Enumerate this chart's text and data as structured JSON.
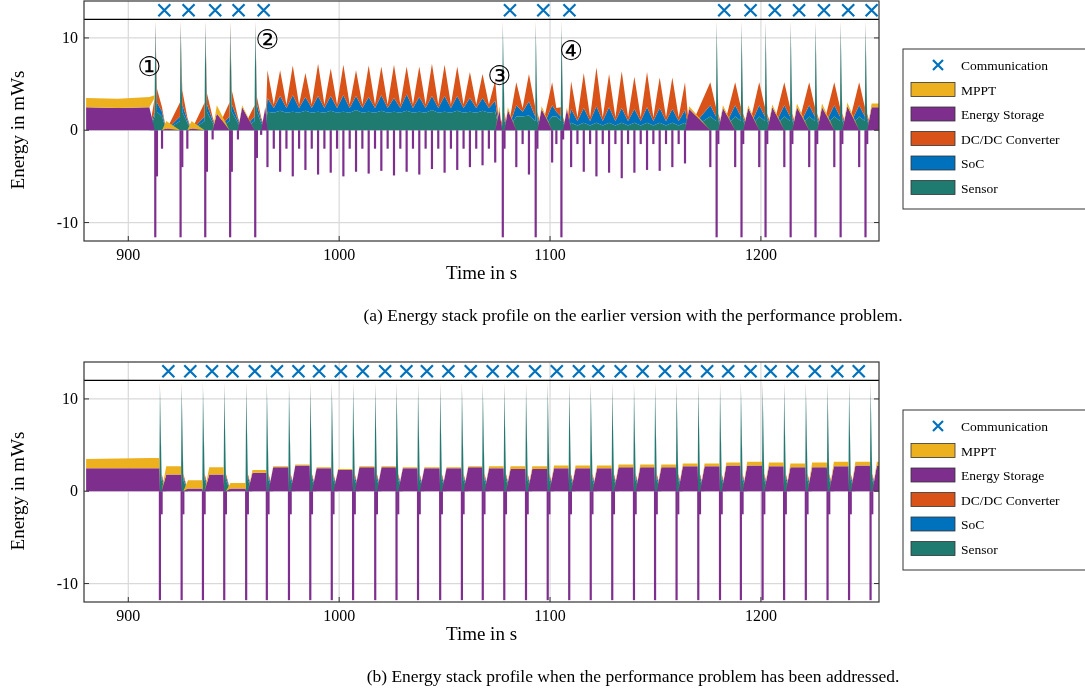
{
  "chart_data": [
    {
      "type": "area",
      "stacked": true,
      "xlabel": "Time in s",
      "ylabel": "Energy in mWs",
      "xlim": [
        879,
        1256
      ],
      "ylim": [
        -12,
        14
      ],
      "xticks": [
        900,
        1000,
        1100,
        1200
      ],
      "yticks": [
        -10,
        0,
        10
      ],
      "grid": true,
      "legend": "right",
      "ref_lines": [
        {
          "axis": "y",
          "value": 12,
          "color": "#000000"
        }
      ],
      "annotations": [
        {
          "text": "①",
          "x": 910,
          "y": 3.6
        },
        {
          "text": "②",
          "x": 966,
          "y": 6.5
        },
        {
          "text": "③",
          "x": 1076,
          "y": 2.6
        },
        {
          "text": "④",
          "x": 1110,
          "y": 5.3
        },
        "(a) Energy stack profile on the earlier version with the performance problem."
      ],
      "x": [
        880,
        895,
        910,
        912.5,
        912.8,
        913.6,
        916,
        918,
        924.5,
        924.8,
        925.6,
        928,
        930,
        936.2,
        936.5,
        937.3,
        940,
        942,
        948,
        948.3,
        949.1,
        952,
        954,
        959.9,
        960.2,
        961,
        963,
        965,
        966,
        969,
        972,
        975,
        978,
        981,
        984,
        987,
        990,
        993,
        996,
        999,
        1002,
        1005,
        1008,
        1011,
        1014,
        1017,
        1020,
        1023,
        1026,
        1029,
        1032,
        1035,
        1038,
        1041,
        1044,
        1047,
        1050,
        1053,
        1056,
        1059,
        1062,
        1065,
        1068,
        1071,
        1074,
        1076,
        1077.3,
        1077.6,
        1078.4,
        1080,
        1084,
        1087,
        1090,
        1093,
        1093.2,
        1094,
        1096,
        1101,
        1103,
        1105.1,
        1105.4,
        1106.2,
        1108,
        1110,
        1113,
        1116,
        1119,
        1122,
        1125,
        1128,
        1131,
        1134,
        1137,
        1140,
        1143,
        1146,
        1149,
        1152,
        1155,
        1158,
        1161,
        1164,
        1166,
        1176,
        1178.7,
        1179,
        1179.8,
        1182,
        1187.8,
        1190.5,
        1190.8,
        1191.6,
        1194,
        1199.2,
        1201.9,
        1202.2,
        1203,
        1205.4,
        1211.1,
        1213.8,
        1214.1,
        1214.9,
        1217.1,
        1222.9,
        1225.6,
        1225.9,
        1226.7,
        1229,
        1234.8,
        1237.5,
        1237.8,
        1238.6,
        1241,
        1246.6,
        1249.3,
        1249.6,
        1250.4,
        1252.5,
        1256
      ],
      "series": [
        {
          "name": "Communication",
          "type": "scatter",
          "marker": "cross",
          "color": "#0072bd",
          "x": [
            917.1,
            928.6,
            941.2,
            952.3,
            964.2,
            1081,
            1096.8,
            1109.2,
            1182.6,
            1195.1,
            1206.6,
            1218.1,
            1229.9,
            1241.4,
            1252.5
          ],
          "values": [
            13,
            13,
            13,
            13,
            13,
            13,
            13,
            13,
            13,
            13,
            13,
            13,
            13,
            13,
            13
          ]
        },
        {
          "name": "Sensor",
          "color": "#1f7a70",
          "values": [
            0,
            0,
            0,
            1.5,
            11,
            2,
            1.5,
            0,
            1,
            11,
            2,
            0.8,
            0,
            1,
            11,
            2,
            0.8,
            0,
            1,
            11,
            2,
            0.8,
            0,
            1,
            11,
            2,
            0.8,
            0,
            2,
            1.9,
            2.1,
            1.9,
            2,
            1.9,
            2.1,
            1.9,
            2,
            1.9,
            2.1,
            1.9,
            2,
            1.9,
            2.2,
            1.9,
            2,
            1.9,
            2.1,
            1.9,
            2,
            1.9,
            2.1,
            1.9,
            2,
            1.9,
            2.2,
            1.9,
            2,
            1.9,
            2.1,
            1.9,
            2,
            1.9,
            2.1,
            1.9,
            2,
            0,
            0.5,
            11,
            1,
            0,
            1.5,
            1.5,
            1.6,
            1,
            11,
            1,
            0,
            1.5,
            1.5,
            1,
            11,
            0.8,
            0,
            0.8,
            0.5,
            0.8,
            0.5,
            0.8,
            0.5,
            0.8,
            0.5,
            0.8,
            0.5,
            0.8,
            0.5,
            0.8,
            0.5,
            0.8,
            0.5,
            0.8,
            0.5,
            0.8,
            0,
            1.5,
            1,
            11,
            1,
            0,
            1.5,
            1,
            11,
            1,
            0,
            1.5,
            1,
            11,
            1,
            0,
            1.5,
            1,
            11,
            1,
            0,
            1.5,
            1,
            11,
            1,
            0,
            1.5,
            1,
            11,
            1,
            0,
            1.5,
            1,
            11,
            1,
            0,
            0
          ]
        },
        {
          "name": "SoC",
          "color": "#0072bd",
          "values": [
            0,
            0,
            0,
            0.5,
            0.4,
            1,
            0.5,
            0,
            0.5,
            0.4,
            0.8,
            0.3,
            0,
            0.5,
            0.4,
            0.8,
            0.3,
            0,
            0.5,
            0.4,
            0.8,
            0.3,
            0,
            0.5,
            0.4,
            0.8,
            0.3,
            0,
            1.5,
            0.5,
            1.6,
            0.5,
            1.8,
            0.5,
            1.5,
            0.5,
            1.7,
            0.5,
            1.6,
            0.5,
            1.8,
            0.5,
            1.5,
            0.5,
            1.6,
            0.5,
            1.7,
            0.5,
            1.5,
            0.5,
            1.8,
            0.5,
            1.6,
            0.5,
            1.5,
            0.5,
            1.7,
            0.5,
            1.6,
            0.5,
            1.5,
            0.5,
            1.4,
            0.5,
            1.2,
            0,
            0.3,
            0.4,
            0.4,
            0,
            1.2,
            0.5,
            1.5,
            0.5,
            0.4,
            0.5,
            0,
            1.2,
            0.5,
            0.5,
            0.4,
            0.3,
            0,
            1.5,
            0.5,
            1.6,
            0.5,
            1.8,
            0.5,
            1.7,
            0.5,
            1.6,
            0.5,
            1.5,
            0.5,
            1.7,
            0.5,
            1.6,
            0.5,
            1.5,
            0.5,
            1.4,
            0,
            1.2,
            0.5,
            0.4,
            0.4,
            0,
            1.2,
            0.5,
            0.4,
            0.4,
            0,
            1.2,
            0.5,
            0.4,
            0.4,
            0,
            1.2,
            0.5,
            0.4,
            0.4,
            0,
            1.2,
            0.5,
            0.4,
            0.4,
            0,
            1.2,
            0.5,
            0.4,
            0.4,
            0,
            1.2,
            0.5,
            0.4,
            0.4,
            0,
            0
          ]
        },
        {
          "name": "DC/DC Converter",
          "color": "#d95319",
          "values": [
            0,
            0,
            0,
            1.5,
            0.4,
            1.5,
            0.5,
            0,
            1.5,
            0.4,
            1.5,
            0.3,
            0,
            1.5,
            0.4,
            1.2,
            0.3,
            0,
            1.5,
            0.4,
            1.5,
            0.3,
            0,
            1.2,
            0.4,
            0.8,
            0.3,
            0,
            3,
            0.4,
            2.8,
            0.4,
            3.2,
            0.4,
            2.6,
            0.4,
            3.5,
            0.4,
            3,
            0.4,
            3.3,
            0.4,
            2.8,
            0.4,
            3.4,
            0.4,
            3.1,
            0.4,
            3.6,
            0.4,
            3,
            0.4,
            3.3,
            0.4,
            3.5,
            0.4,
            3.4,
            0.4,
            3.2,
            0.4,
            2.8,
            0.4,
            2.6,
            0.4,
            2.2,
            0,
            0.5,
            0.4,
            0.5,
            0,
            2.5,
            0.4,
            3,
            1,
            0.4,
            0.5,
            0,
            2.5,
            0.4,
            1,
            0.4,
            0.3,
            0,
            3,
            0.4,
            3.8,
            0.4,
            4.2,
            0.4,
            3.6,
            0.4,
            4,
            0.4,
            3.5,
            0.4,
            3.8,
            0.4,
            3.3,
            0.4,
            3.4,
            0.4,
            3,
            0,
            2.5,
            1,
            0.4,
            0.4,
            0,
            2.5,
            1,
            0.4,
            0.4,
            0,
            2.5,
            1,
            0.4,
            0.4,
            0,
            2.5,
            1,
            0.4,
            0.4,
            0,
            2.5,
            1,
            0.4,
            0.4,
            0,
            2.5,
            1,
            0.4,
            0.4,
            0,
            2.5,
            1,
            0.4,
            0.4,
            0,
            0
          ]
        },
        {
          "name": "Energy Storage",
          "color": "#7e2f8e",
          "values": [
            2.5,
            2.4,
            2.5,
            null,
            null,
            null,
            null,
            0.2,
            null,
            null,
            null,
            null,
            0.2,
            null,
            null,
            null,
            null,
            1.8,
            null,
            null,
            null,
            null,
            2.5,
            null,
            null,
            null,
            null,
            2.5,
            null,
            null,
            null,
            null,
            null,
            null,
            null,
            null,
            null,
            null,
            null,
            null,
            null,
            null,
            null,
            null,
            null,
            null,
            null,
            null,
            null,
            null,
            null,
            null,
            null,
            null,
            null,
            null,
            null,
            null,
            null,
            null,
            null,
            null,
            null,
            null,
            null,
            2.2,
            null,
            null,
            null,
            2.2,
            null,
            null,
            null,
            null,
            null,
            null,
            2.3,
            null,
            null,
            null,
            null,
            null,
            2.3,
            null,
            null,
            null,
            null,
            null,
            null,
            null,
            null,
            null,
            null,
            null,
            null,
            null,
            null,
            null,
            null,
            null,
            null,
            null,
            2.3,
            null,
            null,
            null,
            null,
            2.4,
            null,
            null,
            null,
            null,
            2.4,
            null,
            null,
            null,
            null,
            2.5,
            null,
            null,
            null,
            null,
            2.5,
            null,
            null,
            null,
            null,
            2.5,
            null,
            null,
            null,
            null,
            2.6,
            null,
            null,
            null,
            null,
            2.5,
            2.5
          ]
        },
        {
          "name": "MPPT",
          "color": "#edb120",
          "values": [
            1,
            1,
            1.1,
            0.3,
            null,
            null,
            null,
            0.8,
            null,
            null,
            null,
            null,
            0.8,
            null,
            null,
            null,
            null,
            0.9,
            null,
            null,
            null,
            null,
            0.2,
            null,
            null,
            null,
            null,
            0.1,
            null,
            null,
            null,
            null,
            null,
            null,
            null,
            null,
            null,
            null,
            null,
            null,
            null,
            null,
            null,
            null,
            null,
            null,
            null,
            null,
            null,
            null,
            null,
            null,
            null,
            null,
            null,
            null,
            null,
            null,
            null,
            null,
            null,
            null,
            null,
            null,
            null,
            0.4,
            null,
            null,
            null,
            0.3,
            null,
            null,
            null,
            null,
            null,
            null,
            0.3,
            null,
            null,
            null,
            null,
            null,
            0.2,
            null,
            null,
            null,
            null,
            null,
            null,
            null,
            null,
            null,
            null,
            null,
            null,
            null,
            null,
            null,
            null,
            null,
            null,
            null,
            0.3,
            null,
            null,
            null,
            null,
            0.3,
            null,
            null,
            null,
            null,
            0.3,
            null,
            null,
            null,
            null,
            0.3,
            null,
            null,
            null,
            null,
            0.4,
            null,
            null,
            null,
            null,
            0.4,
            null,
            null,
            null,
            null,
            0.4,
            null,
            null,
            null,
            null,
            0.4,
            0.4
          ]
        },
        {
          "type": "bar",
          "color": "#7e2f8e",
          "values": [
            null,
            null,
            null,
            null,
            -11.6,
            -5,
            -2,
            null,
            null,
            -11.6,
            -4,
            -2,
            null,
            null,
            -11.6,
            -4.5,
            -1,
            null,
            null,
            -11.6,
            -4.5,
            -1,
            null,
            null,
            -11.6,
            -3,
            -0.5,
            null,
            -4,
            -2,
            -4.5,
            -2,
            -5,
            -2,
            -4.3,
            -2,
            -4.8,
            -2,
            -4.6,
            -2,
            -5,
            -2,
            -4.5,
            -2,
            -4.7,
            -2,
            -4.4,
            -2,
            -4.9,
            -2,
            -4.5,
            -2,
            -4.8,
            -2,
            -4.2,
            -2,
            -4.6,
            -2,
            -4.3,
            -2,
            -4,
            -2,
            -3.8,
            -2,
            -3.5,
            null,
            null,
            -11.6,
            -2,
            null,
            -4,
            -1.5,
            -4.8,
            null,
            -11.6,
            -2,
            null,
            -3.5,
            -1.5,
            null,
            -11.6,
            -1,
            null,
            -4,
            -1.5,
            -4.5,
            -1.5,
            -5,
            -1.5,
            -4.6,
            -1.5,
            -5.2,
            -1.5,
            -4.6,
            -1.5,
            -4.3,
            -1.5,
            -4.4,
            -1.5,
            -4,
            -1.5,
            -3.6,
            null,
            -4,
            null,
            -11.6,
            -1.5,
            null,
            -4,
            null,
            -11.6,
            -1.5,
            null,
            -4,
            null,
            -11.6,
            -1.5,
            null,
            -4,
            null,
            -11.6,
            -1.5,
            null,
            -4,
            null,
            -11.6,
            -1.5,
            null,
            -4,
            null,
            -11.6,
            -1.5,
            null,
            -4,
            null,
            -11.6,
            -1.5,
            null,
            null
          ]
        }
      ]
    },
    {
      "type": "area",
      "stacked": true,
      "xlabel": "Time in s",
      "ylabel": "Energy in mWs",
      "xlim": [
        879,
        1256
      ],
      "ylim": [
        -12,
        14
      ],
      "xticks": [
        900,
        1000,
        1100,
        1200
      ],
      "yticks": [
        -10,
        0,
        10
      ],
      "grid": true,
      "legend": "right",
      "ref_lines": [
        {
          "axis": "y",
          "value": 12,
          "color": "#000000"
        }
      ],
      "annotations": [
        "(b) Energy stack profile when the performance problem has been addressed."
      ],
      "x": [
        880,
        910,
        914.7,
        915,
        915.8,
        918,
        925,
        925.3,
        926.1,
        928.3,
        935.1,
        935.4,
        936.2,
        938.4,
        945.2,
        945.5,
        946.3,
        948.5,
        955.6,
        955.9,
        956.7,
        958.9,
        965.4,
        965.7,
        966.5,
        968.7,
        975.9,
        976.2,
        977,
        979.2,
        986,
        986.3,
        987.1,
        989.3,
        996.2,
        996.5,
        997.3,
        999.5,
        1006.3,
        1006.6,
        1007.4,
        1009.6,
        1016.8,
        1017.1,
        1017.9,
        1020.1,
        1026.9,
        1027.2,
        1028,
        1030.2,
        1037.1,
        1037.4,
        1038.2,
        1040.4,
        1047.6,
        1047.9,
        1048.7,
        1050.9,
        1057.9,
        1058.2,
        1059,
        1061.2,
        1067.8,
        1068.1,
        1068.9,
        1071.1,
        1078,
        1078.3,
        1079.1,
        1081.3,
        1088.3,
        1088.6,
        1089.4,
        1091.6,
        1098.6,
        1098.9,
        1099.7,
        1101.9,
        1108.8,
        1109.1,
        1109.9,
        1112.1,
        1119,
        1119.3,
        1120.1,
        1122.3,
        1129.2,
        1129.5,
        1130.3,
        1132.5,
        1139.5,
        1139.8,
        1140.6,
        1142.8,
        1149.5,
        1149.8,
        1150.6,
        1152.8,
        1159.7,
        1160,
        1160.8,
        1163,
        1170,
        1170.3,
        1171.1,
        1173.3,
        1180.3,
        1180.6,
        1181.4,
        1183.6,
        1190.2,
        1190.5,
        1191.3,
        1193.5,
        1200.5,
        1200.8,
        1201.6,
        1203.8,
        1210.7,
        1211,
        1211.8,
        1214,
        1221,
        1221.3,
        1222.1,
        1224.3,
        1231.3,
        1231.6,
        1232.4,
        1234.6,
        1241.5,
        1241.8,
        1242.6,
        1244.8,
        1251.7,
        1252,
        1252.8,
        1255,
        1256
      ],
      "series": [
        {
          "name": "Communication",
          "type": "scatter",
          "marker": "cross",
          "color": "#0072bd",
          "x": [
            919,
            929.4,
            939.7,
            949.4,
            960,
            970.5,
            980.7,
            990.5,
            1000.8,
            1011.2,
            1021.8,
            1031.9,
            1041.6,
            1051.8,
            1062.4,
            1072.8,
            1082.3,
            1092.9,
            1103.2,
            1113.7,
            1122.9,
            1133.5,
            1143.9,
            1154.5,
            1164,
            1174.5,
            1184.5,
            1195.1,
            1204.6,
            1215,
            1225.6,
            1236.2,
            1246.4
          ],
          "values": [
            13,
            13,
            13,
            13,
            13,
            13,
            13,
            13,
            13,
            13,
            13,
            13,
            13,
            13,
            13,
            13,
            13,
            13,
            13,
            13,
            13,
            13,
            13,
            13,
            13,
            13,
            13,
            13,
            13,
            13,
            13,
            13,
            13
          ]
        },
        {
          "name": "Sensor",
          "color": "#1f7a70",
          "values": [
            0,
            0,
            0,
            11,
            1.2,
            0,
            0,
            11,
            1.2,
            0,
            0,
            11,
            1.2,
            0,
            0,
            11,
            1.2,
            0,
            0,
            11,
            1.2,
            0,
            0,
            11,
            1.2,
            0,
            0,
            11,
            1.2,
            0,
            0,
            11,
            1.2,
            0,
            0,
            11,
            1.2,
            0,
            0,
            11,
            1.2,
            0,
            0,
            11,
            1.2,
            0,
            0,
            11,
            1.2,
            0,
            0,
            11,
            1.2,
            0,
            0,
            11,
            1.2,
            0,
            0,
            11,
            1.2,
            0,
            0,
            11,
            1.2,
            0,
            0,
            11,
            1.2,
            0,
            0,
            11,
            1.2,
            0,
            0,
            11,
            1.2,
            0,
            0,
            11,
            1.2,
            0,
            0,
            11,
            1.2,
            0,
            0,
            11,
            1.2,
            0,
            0,
            11,
            1.2,
            0,
            0,
            11,
            1.2,
            0,
            0,
            11,
            1.2,
            0,
            0,
            11,
            1.2,
            0,
            0,
            11,
            1.2,
            0,
            0,
            11,
            1.2,
            0,
            0,
            11,
            1.2,
            0,
            0,
            11,
            1.2,
            0,
            0,
            11,
            1.2,
            0,
            0,
            11,
            1.2,
            0,
            0,
            11,
            1.2,
            0,
            0,
            11,
            1.2,
            0,
            0
          ]
        },
        {
          "name": "SoC",
          "color": "#0072bd",
          "values": [
            0,
            0,
            0,
            0.4,
            0.4,
            0,
            0,
            0.4,
            0.4,
            0,
            0,
            0.4,
            0.4,
            0,
            0,
            0.4,
            0.4,
            0,
            0,
            0.4,
            0.4,
            0,
            0,
            0.4,
            0.4,
            0,
            0,
            0.4,
            0.4,
            0,
            0,
            0.4,
            0.4,
            0,
            0,
            0.4,
            0.4,
            0,
            0,
            0.4,
            0.4,
            0,
            0,
            0.4,
            0.4,
            0,
            0,
            0.4,
            0.4,
            0,
            0,
            0.4,
            0.4,
            0,
            0,
            0.4,
            0.4,
            0,
            0,
            0.4,
            0.4,
            0,
            0,
            0.4,
            0.4,
            0,
            0,
            0.4,
            0.4,
            0,
            0,
            0.4,
            0.4,
            0,
            0,
            0.4,
            0.4,
            0,
            0,
            0.4,
            0.4,
            0,
            0,
            0.4,
            0.4,
            0,
            0,
            0.4,
            0.4,
            0,
            0,
            0.4,
            0.4,
            0,
            0,
            0.4,
            0.4,
            0,
            0,
            0.4,
            0.4,
            0,
            0,
            0.4,
            0.4,
            0,
            0,
            0.4,
            0.4,
            0,
            0,
            0.4,
            0.4,
            0,
            0,
            0.4,
            0.4,
            0,
            0,
            0.4,
            0.4,
            0,
            0,
            0.4,
            0.4,
            0,
            0,
            0.4,
            0.4,
            0,
            0,
            0.4,
            0.4,
            0,
            0,
            0.4,
            0.4,
            0,
            0
          ]
        },
        {
          "name": "DC/DC Converter",
          "color": "#d95319",
          "values": [
            0,
            0,
            0,
            0.4,
            0.3,
            0,
            0,
            0.4,
            0.3,
            0,
            0,
            0.4,
            0.3,
            0,
            0,
            0.4,
            0.3,
            0,
            0,
            0.4,
            0.3,
            0,
            0,
            0.4,
            0.3,
            0,
            0,
            0.4,
            0.3,
            0,
            0,
            0.4,
            0.3,
            0,
            0,
            0.4,
            0.3,
            0,
            0,
            0.4,
            0.3,
            0,
            0,
            0.4,
            0.3,
            0,
            0,
            0.4,
            0.3,
            0,
            0,
            0.4,
            0.3,
            0,
            0,
            0.4,
            0.3,
            0,
            0,
            0.4,
            0.3,
            0,
            0,
            0.4,
            0.3,
            0,
            0,
            0.4,
            0.3,
            0,
            0,
            0.4,
            0.3,
            0,
            0,
            0.4,
            0.3,
            0,
            0,
            0.4,
            0.3,
            0,
            0,
            0.4,
            0.3,
            0,
            0,
            0.4,
            0.3,
            0,
            0,
            0.4,
            0.3,
            0,
            0,
            0.4,
            0.3,
            0,
            0,
            0.4,
            0.3,
            0,
            0,
            0.4,
            0.3,
            0,
            0,
            0.4,
            0.3,
            0,
            0,
            0.4,
            0.3,
            0,
            0,
            0.4,
            0.3,
            0,
            0,
            0.4,
            0.3,
            0,
            0,
            0.4,
            0.3,
            0,
            0,
            0.4,
            0.3,
            0,
            0,
            0.4,
            0.3,
            0,
            0,
            0.4,
            0.3,
            0,
            0
          ]
        },
        {
          "name": "Energy Storage",
          "color": "#7e2f8e",
          "values": [
            2.5,
            2.5,
            2.5,
            null,
            null,
            1.8,
            1.8,
            null,
            null,
            0.3,
            0.3,
            null,
            null,
            1.8,
            1.8,
            null,
            null,
            0.3,
            0.3,
            null,
            null,
            2,
            2,
            null,
            null,
            2.6,
            2.6,
            null,
            null,
            2.8,
            2.8,
            null,
            null,
            2.5,
            2.5,
            null,
            null,
            2.3,
            2.3,
            null,
            null,
            2.6,
            2.6,
            null,
            null,
            2.6,
            2.6,
            null,
            null,
            2.5,
            2.5,
            null,
            null,
            2.5,
            2.5,
            null,
            null,
            2.5,
            2.5,
            null,
            null,
            2.6,
            2.6,
            null,
            null,
            2.5,
            2.5,
            null,
            null,
            2.4,
            2.4,
            null,
            null,
            2.4,
            2.4,
            null,
            null,
            2.5,
            2.5,
            null,
            null,
            2.5,
            2.5,
            null,
            null,
            2.5,
            2.5,
            null,
            null,
            2.6,
            2.6,
            null,
            null,
            2.6,
            2.6,
            null,
            null,
            2.6,
            2.6,
            null,
            null,
            2.7,
            2.7,
            null,
            null,
            2.7,
            2.7,
            null,
            null,
            2.8,
            2.8,
            null,
            null,
            2.8,
            2.8,
            null,
            null,
            2.7,
            2.7,
            null,
            null,
            2.6,
            2.6,
            null,
            null,
            2.6,
            2.6,
            null,
            null,
            2.7,
            2.7,
            null,
            null,
            2.8,
            2.8,
            null,
            null,
            2.8,
            2.8
          ]
        },
        {
          "name": "MPPT",
          "color": "#edb120",
          "values": [
            1,
            1.1,
            1.1,
            null,
            null,
            0.9,
            0.9,
            null,
            null,
            0.9,
            0.9,
            null,
            null,
            0.8,
            0.8,
            null,
            null,
            0.6,
            0.6,
            null,
            null,
            0.3,
            0.3,
            null,
            null,
            0.1,
            0.1,
            null,
            null,
            0.1,
            0.1,
            null,
            null,
            0.1,
            0.1,
            null,
            null,
            0.1,
            0.1,
            null,
            null,
            0.1,
            0.1,
            null,
            null,
            0.1,
            0.1,
            null,
            null,
            0.1,
            0.1,
            null,
            null,
            0.1,
            0.1,
            null,
            null,
            0.1,
            0.1,
            null,
            null,
            0.1,
            0.1,
            null,
            null,
            0.2,
            0.2,
            null,
            null,
            0.3,
            0.3,
            null,
            null,
            0.3,
            0.3,
            null,
            null,
            0.3,
            0.3,
            null,
            null,
            0.3,
            0.3,
            null,
            null,
            0.3,
            0.3,
            null,
            null,
            0.3,
            0.3,
            null,
            null,
            0.3,
            0.3,
            null,
            null,
            0.3,
            0.3,
            null,
            null,
            0.3,
            0.3,
            null,
            null,
            0.3,
            0.3,
            null,
            null,
            0.3,
            0.3,
            null,
            null,
            0.4,
            0.4,
            null,
            null,
            0.4,
            0.4,
            null,
            null,
            0.4,
            0.4,
            null,
            null,
            0.5,
            0.5,
            null,
            null,
            0.5,
            0.5,
            null,
            null,
            0.4,
            0.4,
            null,
            null,
            0.4,
            0.4
          ]
        },
        {
          "type": "bar",
          "color": "#7e2f8e",
          "values": [
            null,
            null,
            null,
            -11.8,
            -2.5,
            null,
            null,
            -11.8,
            -2.5,
            null,
            null,
            -11.8,
            -2.5,
            null,
            null,
            -11.8,
            -2.5,
            null,
            null,
            -11.8,
            -2.5,
            null,
            null,
            -11.8,
            -2.5,
            null,
            null,
            -11.8,
            -2.5,
            null,
            null,
            -11.8,
            -2.5,
            null,
            null,
            -11.8,
            -2.5,
            null,
            null,
            -11.8,
            -2.5,
            null,
            null,
            -11.8,
            -2.5,
            null,
            null,
            -11.8,
            -2.5,
            null,
            null,
            -11.8,
            -2.5,
            null,
            null,
            -11.8,
            -2.5,
            null,
            null,
            -11.8,
            -2.5,
            null,
            null,
            -11.8,
            -2.5,
            null,
            null,
            -11.8,
            -2.5,
            null,
            null,
            -11.8,
            -2.5,
            null,
            null,
            -11.8,
            -2.5,
            null,
            null,
            -11.8,
            -2.5,
            null,
            null,
            -11.8,
            -2.5,
            null,
            null,
            -11.8,
            -2.5,
            null,
            null,
            -11.8,
            -2.5,
            null,
            null,
            -11.8,
            -2.5,
            null,
            null,
            -11.8,
            -2.5,
            null,
            null,
            -11.8,
            -2.5,
            null,
            null,
            -11.8,
            -2.5,
            null,
            null,
            -11.8,
            -2.5,
            null,
            null,
            -11.8,
            -2.5,
            null,
            null,
            -11.8,
            -2.5,
            null,
            null,
            -11.8,
            -2.5,
            null,
            null,
            -11.8,
            -2.5,
            null,
            null,
            -11.8,
            -2.5,
            null,
            null,
            -11.8,
            -2.5,
            null,
            null
          ]
        }
      ]
    }
  ]
}
